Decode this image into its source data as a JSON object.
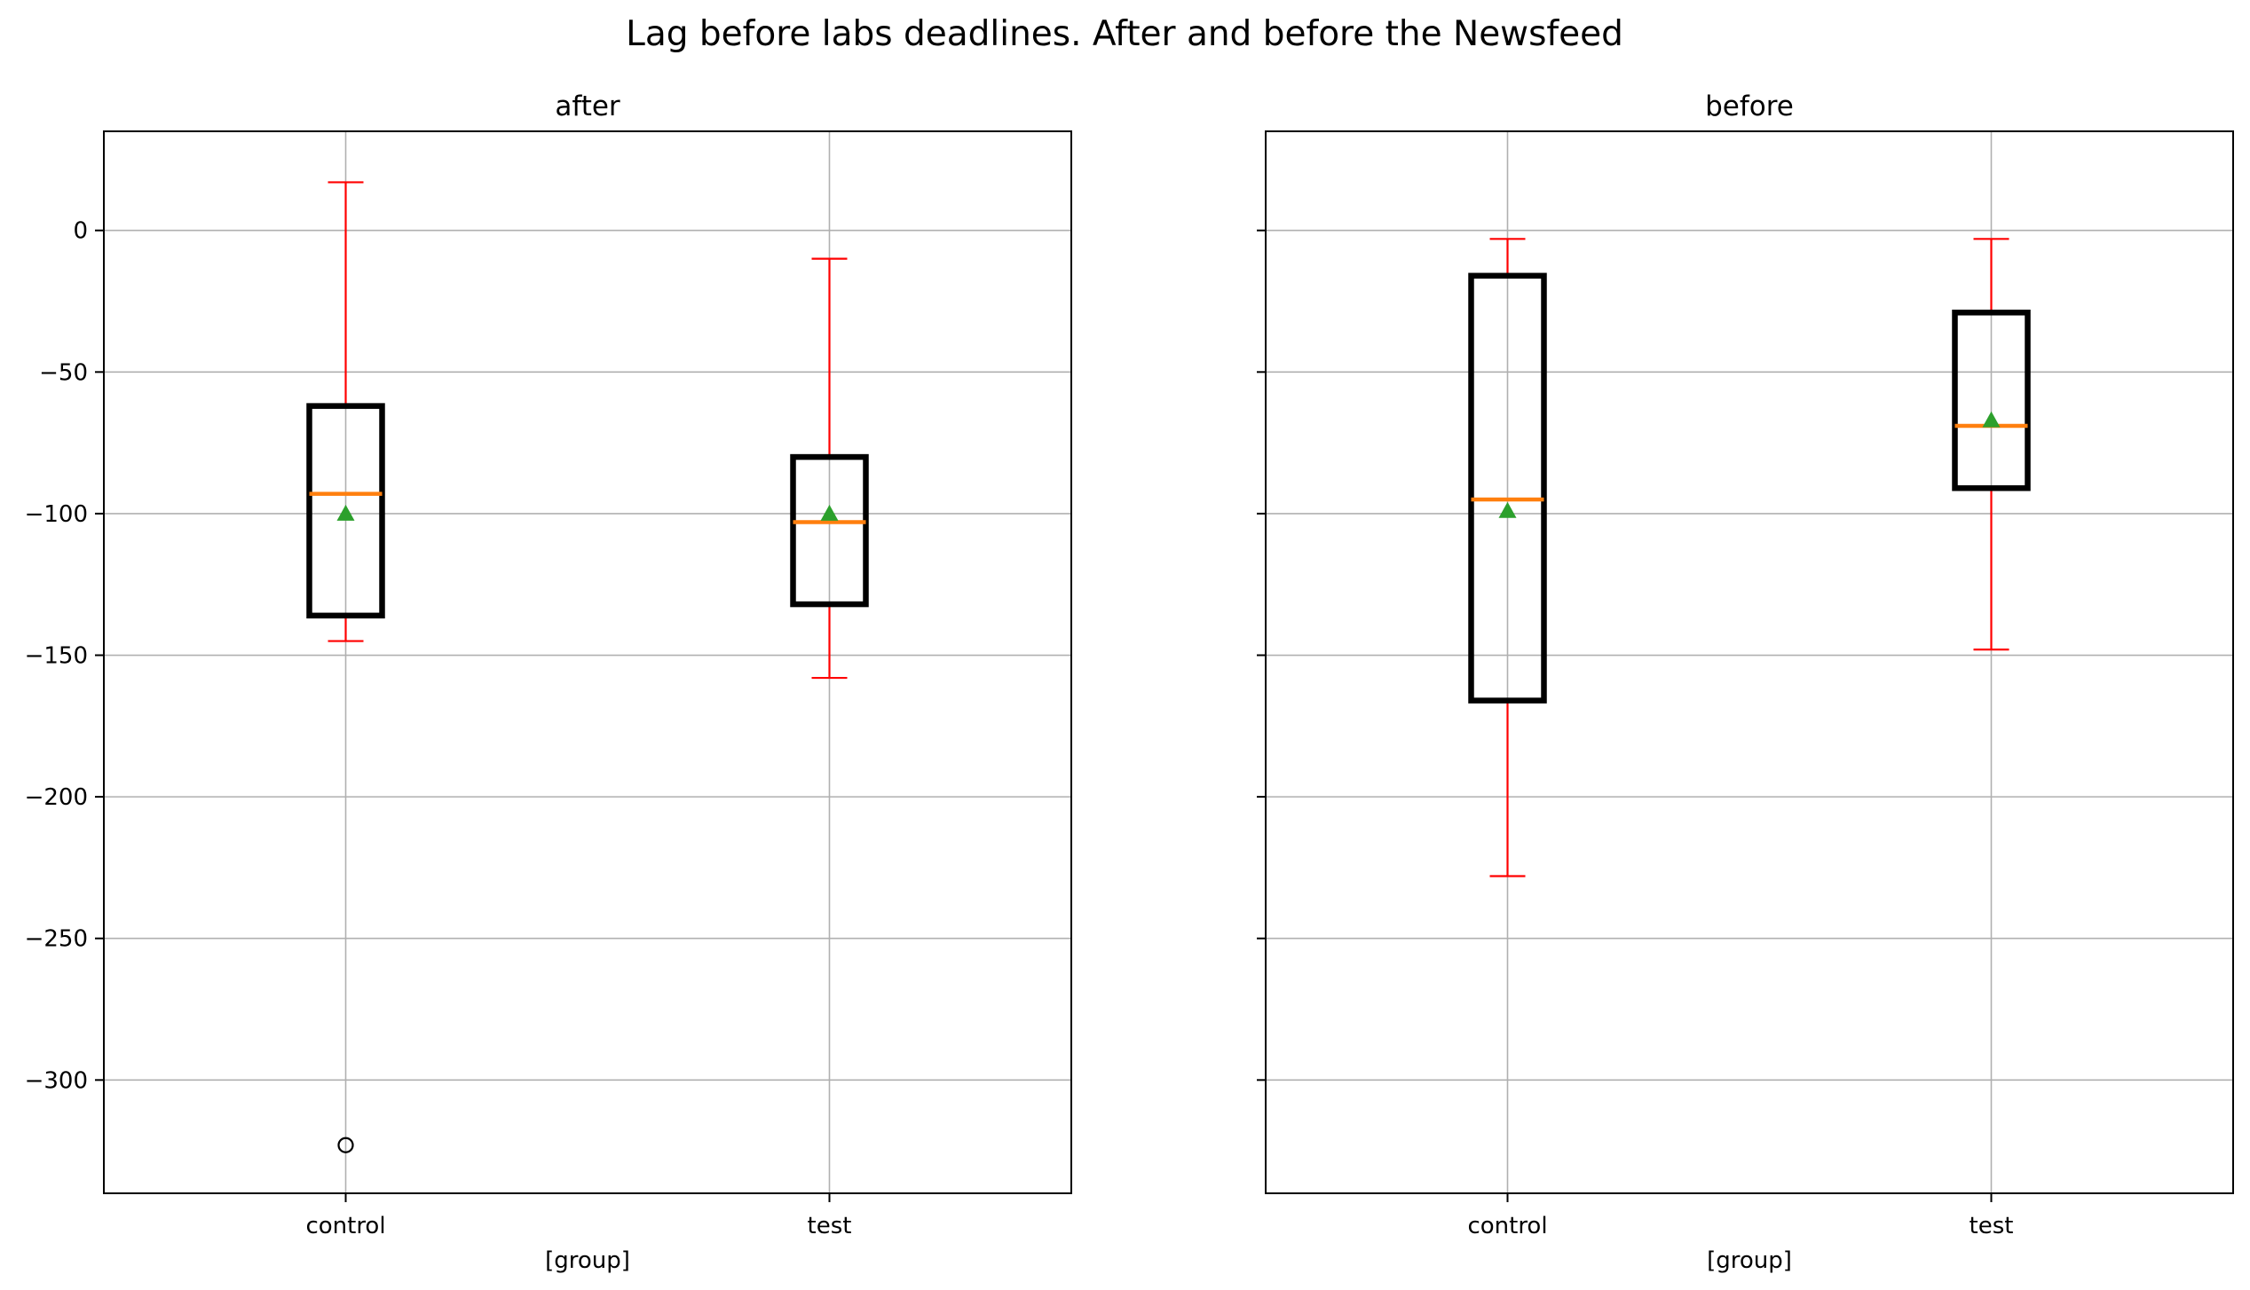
{
  "chart_data": {
    "type": "box",
    "title": "Lag before labs deadlines. After and before the Newsfeed",
    "shared_y": true,
    "ylim": [
      -340,
      35
    ],
    "yticks": [
      0,
      -50,
      -100,
      -150,
      -200,
      -250,
      -300
    ],
    "ytick_labels": [
      "0",
      "−50",
      "−100",
      "−150",
      "−200",
      "−250",
      "−300"
    ],
    "grid": true,
    "colors": {
      "box": "#000000",
      "whisker": "#ff0000",
      "median": "#ff7f0e",
      "mean": "#2ca02c",
      "grid": "#b0b0b0",
      "flier": "#000000"
    },
    "panels": [
      {
        "title": "after",
        "xlabel": "[group]",
        "categories": [
          "control",
          "test"
        ],
        "boxes": [
          {
            "category": "control",
            "whisker_low": -145,
            "q1": -136,
            "median": -93,
            "q3": -62,
            "whisker_high": 17,
            "mean": -100,
            "fliers": [
              -323
            ]
          },
          {
            "category": "test",
            "whisker_low": -158,
            "q1": -132,
            "median": -103,
            "q3": -80,
            "whisker_high": -10,
            "mean": -100,
            "fliers": []
          }
        ]
      },
      {
        "title": "before",
        "xlabel": "[group]",
        "categories": [
          "control",
          "test"
        ],
        "boxes": [
          {
            "category": "control",
            "whisker_low": -228,
            "q1": -166,
            "median": -95,
            "q3": -16,
            "whisker_high": -3,
            "mean": -99,
            "fliers": []
          },
          {
            "category": "test",
            "whisker_low": -148,
            "q1": -91,
            "median": -69,
            "q3": -29,
            "whisker_high": -3,
            "mean": -67,
            "fliers": []
          }
        ]
      }
    ]
  }
}
